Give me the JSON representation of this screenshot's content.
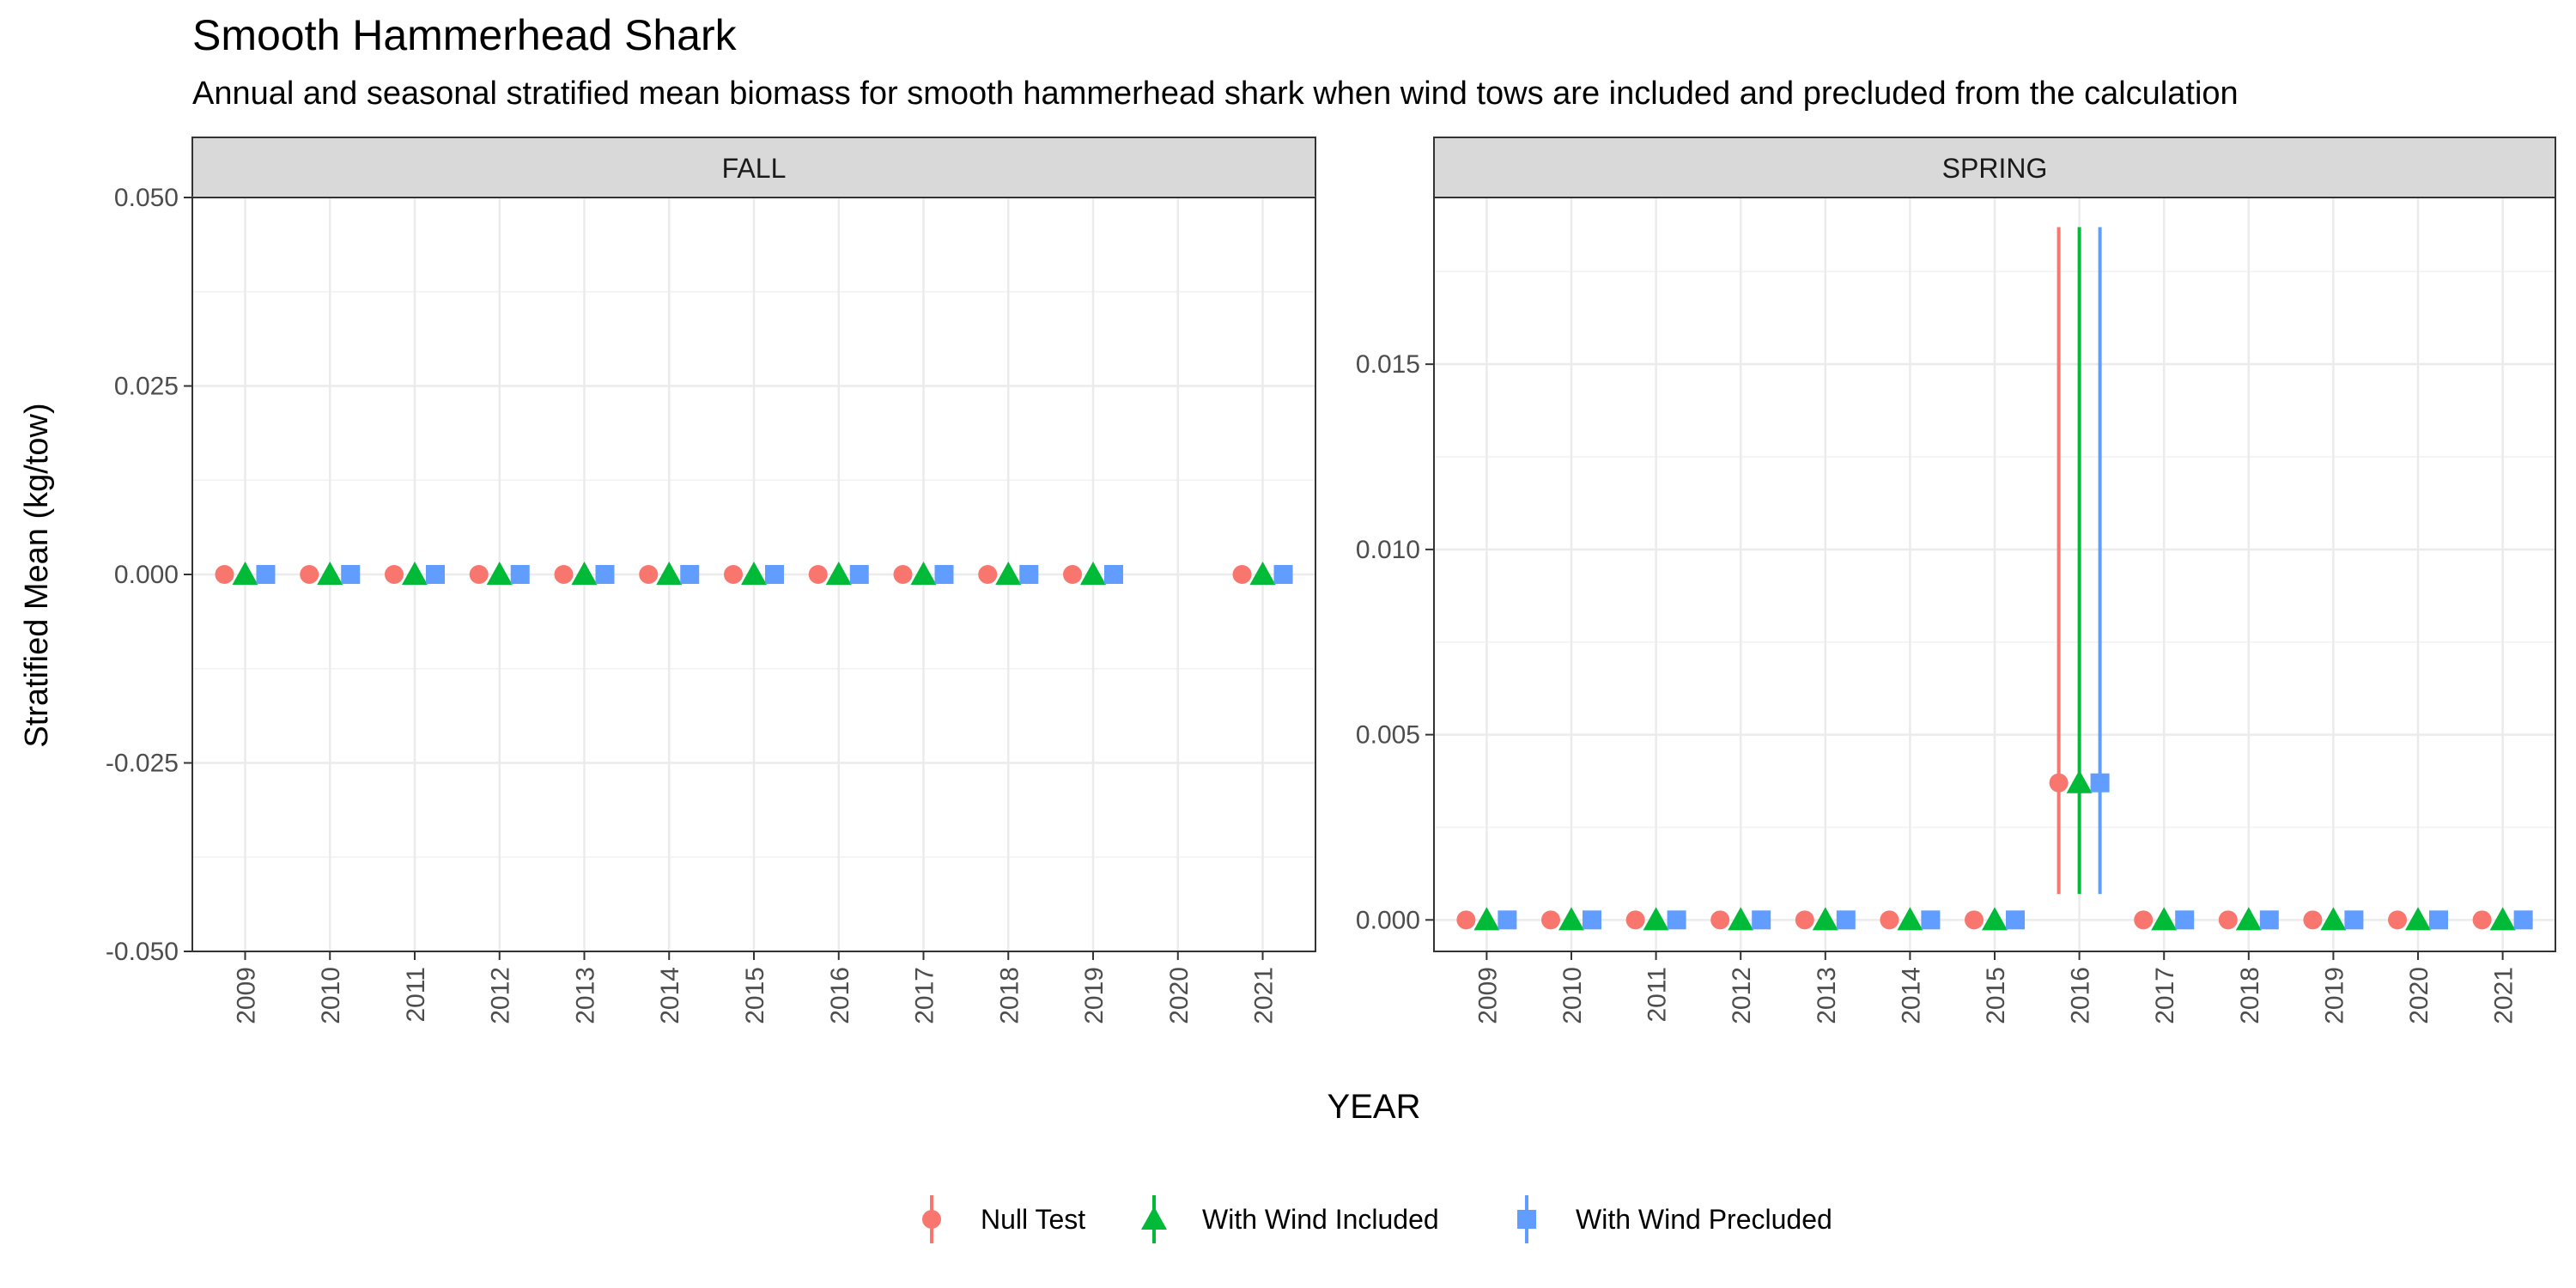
{
  "title": "Smooth Hammerhead Shark",
  "subtitle": "Annual and seasonal stratified mean biomass for smooth hammerhead shark when wind tows are included and precluded from the calculation",
  "chart_data": {
    "type": "scatter",
    "xlabel": "YEAR",
    "ylabel": "Stratified Mean (kg/tow)",
    "categories": [
      "2009",
      "2010",
      "2011",
      "2012",
      "2013",
      "2014",
      "2015",
      "2016",
      "2017",
      "2018",
      "2019",
      "2020",
      "2021"
    ],
    "series": [
      {
        "name": "Null Test",
        "color": "#F8766D",
        "marker": "circle"
      },
      {
        "name": "With Wind Included",
        "color": "#00BA38",
        "marker": "triangle"
      },
      {
        "name": "With Wind Precluded",
        "color": "#619CFF",
        "marker": "square"
      }
    ],
    "legend_position": "bottom",
    "grid": true,
    "panels": [
      {
        "label": "FALL",
        "ylim": [
          -0.05,
          0.05
        ],
        "yticks": [
          "0.050",
          "0.025",
          "0.000",
          "-0.025",
          "-0.050"
        ],
        "ytick_values": [
          0.05,
          0.025,
          0,
          -0.025,
          -0.05
        ],
        "values": {
          "Null Test": [
            0,
            0,
            0,
            0,
            0,
            0,
            0,
            0,
            0,
            0,
            0,
            null,
            0
          ],
          "With Wind Included": [
            0,
            0,
            0,
            0,
            0,
            0,
            0,
            0,
            0,
            0,
            0,
            null,
            0
          ],
          "With Wind Precluded": [
            0,
            0,
            0,
            0,
            0,
            0,
            0,
            0,
            0,
            0,
            0,
            null,
            0
          ]
        },
        "errors": {}
      },
      {
        "label": "SPRING",
        "ylim": [
          -0.00085,
          0.0195
        ],
        "yticks": [
          "0.015",
          "0.010",
          "0.005",
          "0.000"
        ],
        "ytick_values": [
          0.015,
          0.01,
          0.005,
          0
        ],
        "values": {
          "Null Test": [
            0,
            0,
            0,
            0,
            0,
            0,
            0,
            0.0037,
            0,
            0,
            0,
            0,
            0
          ],
          "With Wind Included": [
            0,
            0,
            0,
            0,
            0,
            0,
            0,
            0.0037,
            0,
            0,
            0,
            0,
            0
          ],
          "With Wind Precluded": [
            0,
            0,
            0,
            0,
            0,
            0,
            0,
            0.0037,
            0,
            0,
            0,
            0,
            0
          ]
        },
        "errors": {
          "Null Test": {
            "2016": [
              0.0007,
              0.0187
            ]
          },
          "With Wind Included": {
            "2016": [
              0.0007,
              0.0187
            ]
          },
          "With Wind Precluded": {
            "2016": [
              0.0007,
              0.0187
            ]
          }
        }
      }
    ]
  }
}
